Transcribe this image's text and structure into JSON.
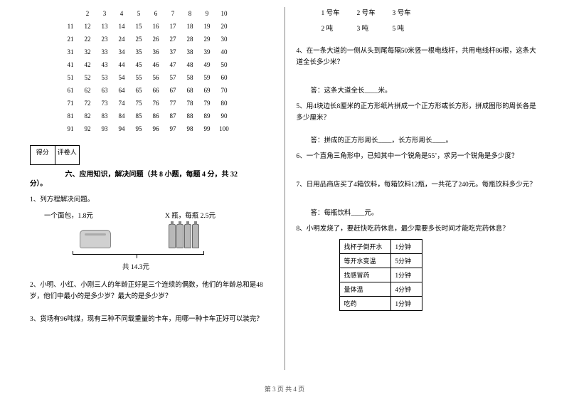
{
  "numbers": {
    "rows": [
      [
        "",
        "2",
        "3",
        "4",
        "5",
        "6",
        "7",
        "8",
        "9",
        "10"
      ],
      [
        "11",
        "12",
        "13",
        "14",
        "15",
        "16",
        "17",
        "18",
        "19",
        "20"
      ],
      [
        "21",
        "22",
        "23",
        "24",
        "25",
        "26",
        "27",
        "28",
        "29",
        "30"
      ],
      [
        "31",
        "32",
        "33",
        "34",
        "35",
        "36",
        "37",
        "38",
        "39",
        "40"
      ],
      [
        "41",
        "42",
        "43",
        "44",
        "45",
        "46",
        "47",
        "48",
        "49",
        "50"
      ],
      [
        "51",
        "52",
        "53",
        "54",
        "55",
        "56",
        "57",
        "58",
        "59",
        "60"
      ],
      [
        "61",
        "62",
        "63",
        "64",
        "65",
        "66",
        "67",
        "68",
        "69",
        "70"
      ],
      [
        "71",
        "72",
        "73",
        "74",
        "75",
        "76",
        "77",
        "78",
        "79",
        "80"
      ],
      [
        "81",
        "82",
        "83",
        "84",
        "85",
        "86",
        "87",
        "88",
        "89",
        "90"
      ],
      [
        "91",
        "92",
        "93",
        "94",
        "95",
        "96",
        "97",
        "98",
        "99",
        "100"
      ]
    ]
  },
  "score": {
    "col1": "得分",
    "col2": "评卷人"
  },
  "section6": {
    "title": "六、应用知识，解决问题（共 8 小题，每题 4 分，共 32",
    "title_cont": "分）。"
  },
  "q1": {
    "text": "1、列方程解决问题。",
    "bread_label": "一个面包，1.8元",
    "bottle_label": "X 瓶，每瓶 2.5元",
    "total": "共 14.3元"
  },
  "q2": "2、小明、小红、小刚三人的年龄正好是三个连续的偶数，他们的年龄总和是48岁，他们中最小的是多少岁？最大的是多少岁？",
  "q3": "3、货场有96吨煤，现有三种不同载重量的卡车，用哪一种卡车正好可以装完？",
  "cars": {
    "row1": [
      "1 号车",
      "2 号车",
      "3 号车"
    ],
    "row2": [
      "2 吨",
      "3 吨",
      "5 吨"
    ]
  },
  "q4": "4、在一条大道的一侧从头到尾每隔50米竖一根电线杆，共用电线杆86根，这条大道全长多少米？",
  "q4_ans": "答：这条大道全长____米。",
  "q5": "5、用4块边长8厘米的正方形纸片拼成一个正方形或长方形，拼成图形的周长各是多少厘米？",
  "q5_ans": "答：拼成的正方形周长____，长方形周长____。",
  "q6": "6、一个直角三角形中，已知其中一个锐角是55˚，求另一个锐角是多少度？",
  "q7": "7、日用品商店买了4箱饮料，每箱饮料12瓶，一共花了240元。每瓶饮料多少元？",
  "q7_ans": "答：每瓶饮料____元。",
  "q8": "8、小明发烧了，要赶快吃药休息，最少需要多长时间才能吃完药休息？",
  "med": {
    "rows": [
      [
        "找杯子倒开水",
        "1分钟"
      ],
      [
        "等开水变温",
        "5分钟"
      ],
      [
        "找感冒药",
        "1分钟"
      ],
      [
        "量体温",
        "4分钟"
      ],
      [
        "吃药",
        "1分钟"
      ]
    ]
  },
  "footer": "第 3 页 共 4 页",
  "colors": {
    "text": "#000000",
    "bg": "#ffffff",
    "line": "#888888"
  }
}
